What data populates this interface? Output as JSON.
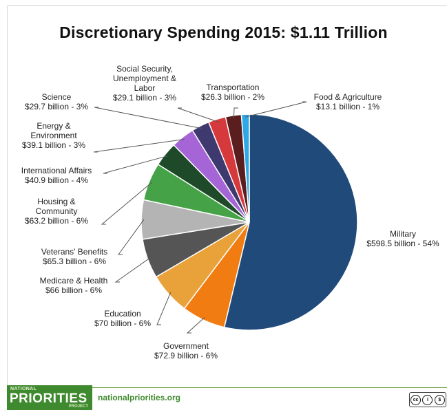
{
  "title": "Discretionary Spending 2015: $1.11 Trillion",
  "chart_data": {
    "type": "pie",
    "title": "Discretionary Spending 2015: $1.11 Trillion",
    "units": "billion",
    "slices": [
      {
        "name": "Military",
        "lines": [
          "Military",
          "$598.5 billion - 54%"
        ],
        "value": 598.5,
        "percent": 54,
        "color": "#1f4a7a"
      },
      {
        "name": "Government",
        "lines": [
          "Government",
          "$72.9 billion - 6%"
        ],
        "value": 72.9,
        "percent": 6,
        "color": "#f07c12"
      },
      {
        "name": "Education",
        "lines": [
          "Education",
          "$70 billion - 6%"
        ],
        "value": 70,
        "percent": 6,
        "color": "#e9a23a"
      },
      {
        "name": "Medicare & Health",
        "lines": [
          "Medicare & Health",
          "$66 billion - 6%"
        ],
        "value": 66,
        "percent": 6,
        "color": "#555555"
      },
      {
        "name": "Veterans' Benefits",
        "lines": [
          "Veterans' Benefits",
          "$65.3 billion - 6%"
        ],
        "value": 65.3,
        "percent": 6,
        "color": "#b4b4b4"
      },
      {
        "name": "Housing & Community",
        "lines": [
          "Housing &",
          "Community",
          "$63.2 billion - 6%"
        ],
        "value": 63.2,
        "percent": 6,
        "color": "#45a246"
      },
      {
        "name": "International Affairs",
        "lines": [
          "International Affairs",
          "$40.9 billion - 4%"
        ],
        "value": 40.9,
        "percent": 4,
        "color": "#1e4a2a"
      },
      {
        "name": "Energy & Environment",
        "lines": [
          "Energy &",
          "Environment",
          "$39.1 billion - 3%"
        ],
        "value": 39.1,
        "percent": 3,
        "color": "#a565d6"
      },
      {
        "name": "Science",
        "lines": [
          "Science",
          "$29.7 billion - 3%"
        ],
        "value": 29.7,
        "percent": 3,
        "color": "#3e3a70"
      },
      {
        "name": "Social Security, Unemployment & Labor",
        "lines": [
          "Social Security,",
          "Unemployment &",
          "Labor",
          "$29.1 billion - 3%"
        ],
        "value": 29.1,
        "percent": 3,
        "color": "#d6393b"
      },
      {
        "name": "Transportation",
        "lines": [
          "Transportation",
          "$26.3 billion - 2%"
        ],
        "value": 26.3,
        "percent": 2,
        "color": "#5a1e1e"
      },
      {
        "name": "Food & Agriculture",
        "lines": [
          "Food & Agriculture",
          "$13.1 billion - 1%"
        ],
        "value": 13.1,
        "percent": 1,
        "color": "#2ea8e6"
      }
    ]
  },
  "footer": {
    "logo_small": "NATIONAL",
    "logo_big": "PRIORITIES",
    "logo_sub": "PROJECT",
    "site": "nationalpriorities.org",
    "license": "cc"
  }
}
